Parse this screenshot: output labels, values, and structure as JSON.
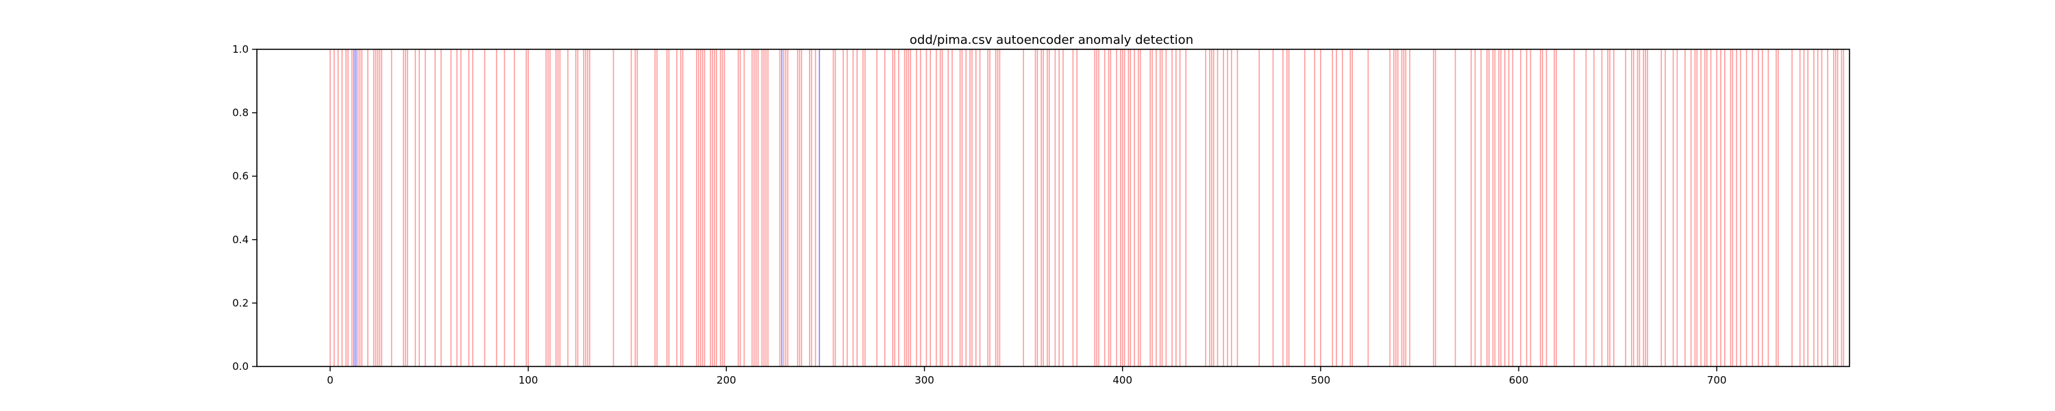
{
  "chart_data": {
    "type": "bar",
    "title": "odd/pima.csv autoencoder anomaly detection",
    "xlabel": "",
    "ylabel": "",
    "xlim": [
      -37,
      767
    ],
    "ylim": [
      0.0,
      1.0
    ],
    "xticks": [
      0,
      100,
      200,
      300,
      400,
      500,
      600,
      700
    ],
    "yticks": [
      0.0,
      0.2,
      0.4,
      0.6,
      0.7999999999999999,
      1.0
    ],
    "ytick_labels": [
      "0.0",
      "0.2",
      "0.4",
      "0.6",
      "0.8",
      "1.0"
    ],
    "xtick_labels": [
      "0",
      "100",
      "200",
      "300",
      "400",
      "500",
      "600",
      "700"
    ],
    "grid": false,
    "legend": "none",
    "colors": {
      "true_anomaly": "#ff9a9a",
      "detected_anomaly": "#7f7fff",
      "axes": "#000000"
    },
    "series": [
      {
        "values": [
          0,
          2,
          4,
          6,
          8,
          9,
          11,
          13,
          14,
          15,
          16,
          19,
          22,
          23,
          24,
          25,
          26,
          31,
          37,
          38,
          39,
          43,
          45,
          48,
          53,
          56,
          61,
          64,
          66,
          70,
          72,
          78,
          84,
          88,
          93,
          99,
          100,
          109,
          110,
          111,
          114,
          115,
          116,
          120,
          124,
          125,
          128,
          129,
          130,
          131,
          143,
          152,
          154,
          155,
          164,
          165,
          170,
          171,
          175,
          177,
          178,
          185,
          186,
          187,
          188,
          189,
          192,
          193,
          194,
          195,
          197,
          198,
          199,
          206,
          207,
          209,
          213,
          214,
          215,
          216,
          218,
          219,
          220,
          221,
          227,
          229,
          230,
          231,
          236,
          237,
          238,
          242,
          243,
          245,
          254,
          255,
          259,
          261,
          264,
          266,
          269,
          270,
          276,
          280,
          284,
          285,
          287,
          290,
          291,
          292,
          293,
          296,
          298,
          301,
          303,
          306,
          308,
          309,
          312,
          314,
          318,
          319,
          321,
          323,
          324,
          326,
          328,
          332,
          333,
          336,
          337,
          338,
          350,
          356,
          357,
          359,
          360,
          362,
          363,
          366,
          368,
          370,
          375,
          377,
          386,
          387,
          388,
          391,
          393,
          394,
          397,
          399,
          400,
          401,
          403,
          404,
          406,
          408,
          409,
          414,
          415,
          417,
          419,
          420,
          422,
          425,
          427,
          429,
          432,
          442,
          444,
          445,
          446,
          448,
          451,
          453,
          455,
          458,
          469,
          476,
          481,
          483,
          484,
          492,
          497,
          500,
          506,
          508,
          511,
          515,
          516,
          524,
          535,
          537,
          538,
          539,
          541,
          542,
          543,
          545,
          557,
          558,
          568,
          576,
          578,
          581,
          584,
          585,
          587,
          588,
          590,
          591,
          593,
          595,
          597,
          601,
          604,
          606,
          611,
          612,
          614,
          618,
          619,
          628,
          634,
          638,
          642,
          645,
          646,
          648,
          654,
          657,
          658,
          660,
          661,
          663,
          664,
          665,
          672,
          674,
          678,
          680,
          684,
          687,
          689,
          690,
          692,
          694,
          695,
          697,
          700,
          702,
          704,
          707,
          708,
          710,
          712,
          715,
          718,
          721,
          723,
          726,
          730,
          731,
          738,
          742,
          744,
          746,
          749,
          751,
          753,
          756,
          759,
          760,
          761,
          763,
          764
        ]
      },
      {
        "values": [
          12,
          13,
          228,
          247
        ]
      }
    ]
  }
}
